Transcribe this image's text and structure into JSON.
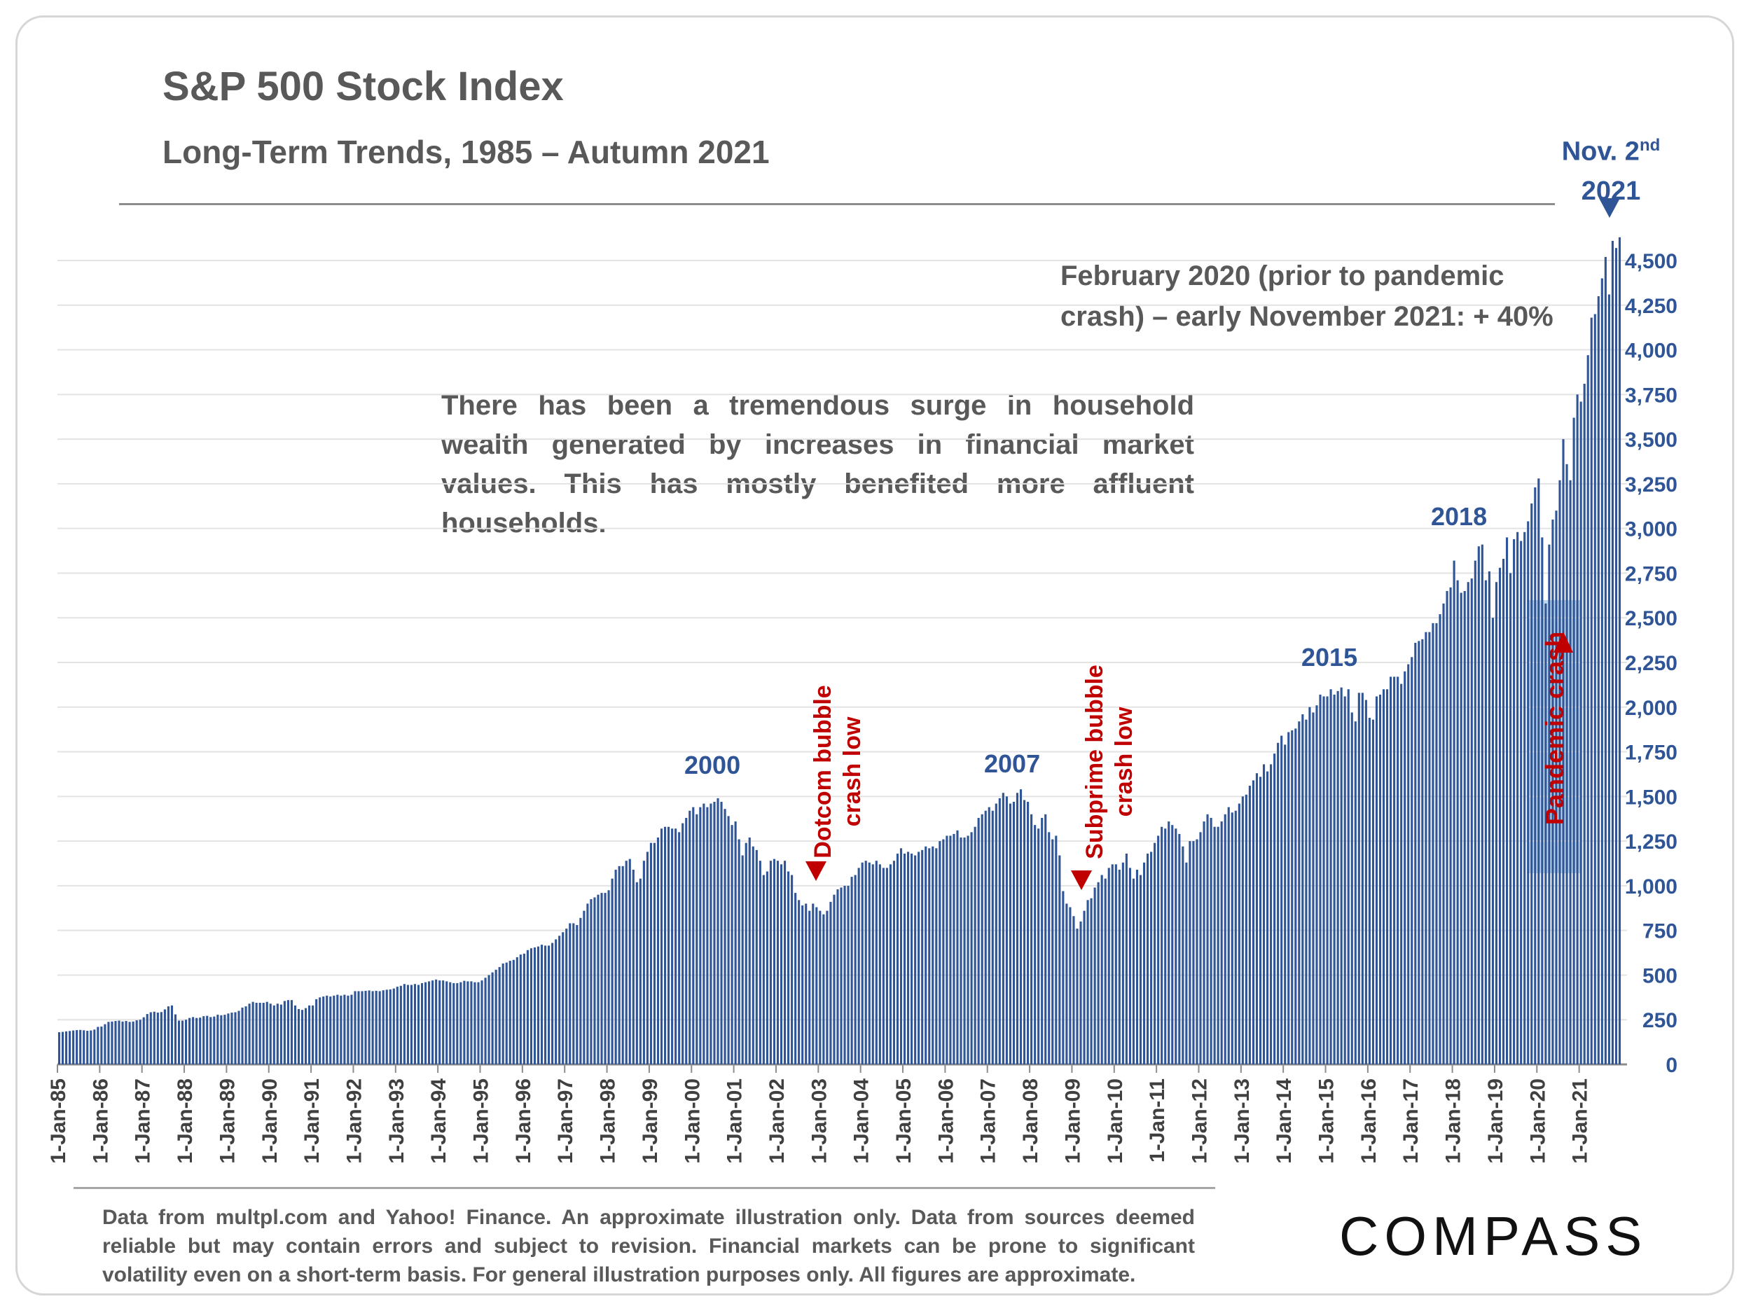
{
  "title": "S&P 500 Stock Index",
  "subtitle": "Long-Term Trends, 1985 – Autumn 2021",
  "nov_label": {
    "line1": "Nov. 2",
    "sup": "nd",
    "line2": "2021"
  },
  "note_feb2020": "February 2020 (prior to pandemic crash) – early November 2021: + 40%",
  "note_wealth": "There has been a tremendous surge in household wealth generated by increases in financial market values. This has mostly benefited more affluent households.",
  "peak_labels": {
    "p2000": "2000",
    "p2007": "2007",
    "p2015": "2015",
    "p2018": "2018"
  },
  "crash_labels": {
    "dotcom_line1": "Dotcom bubble",
    "dotcom_line2": "crash low",
    "subprime_line1": "Subprime bubble",
    "subprime_line2": "crash low",
    "pandemic": "Pandemic crash"
  },
  "footer": "Data from multpl.com and Yahoo! Finance. An approximate illustration only. Data from sources deemed reliable but may contain errors and subject to revision. Financial markets can be prone to significant volatility even on a short-term basis. For general illustration purposes only. All figures are approximate.",
  "logo": "COMPASS",
  "colors": {
    "bar": "#2f5597",
    "annotation": "#c00000",
    "text": "#595959",
    "pandemic_box": "#bdd7ee"
  },
  "chart_data": {
    "type": "bar",
    "frequency": "monthly",
    "title": "S&P 500 Stock Index",
    "ylim": [
      0,
      4500
    ],
    "y_ticks": [
      0,
      250,
      500,
      750,
      1000,
      1250,
      1500,
      1750,
      2000,
      2250,
      2500,
      2750,
      3000,
      3250,
      3500,
      3750,
      4000,
      4250,
      4500
    ],
    "y_tick_labels": [
      "0",
      "250",
      "500",
      "750",
      "1,000",
      "1,250",
      "1,500",
      "1,750",
      "2,000",
      "2,250",
      "2,500",
      "2,750",
      "3,000",
      "3,250",
      "3,500",
      "3,750",
      "4,000",
      "4,250",
      "4,500"
    ],
    "y_axis_side": "right",
    "grid": true,
    "x_tick_labels": [
      "1-Jan-85",
      "1-Jan-86",
      "1-Jan-87",
      "1-Jan-88",
      "1-Jan-89",
      "1-Jan-90",
      "1-Jan-91",
      "1-Jan-92",
      "1-Jan-93",
      "1-Jan-94",
      "1-Jan-95",
      "1-Jan-96",
      "1-Jan-97",
      "1-Jan-98",
      "1-Jan-99",
      "1-Jan-00",
      "1-Jan-01",
      "1-Jan-02",
      "1-Jan-03",
      "1-Jan-04",
      "1-Jan-05",
      "1-Jan-06",
      "1-Jan-07",
      "1-Jan-08",
      "1-Jan-09",
      "1-Jan-10",
      "1-Jan-11",
      "1-Jan-12",
      "1-Jan-13",
      "1-Jan-14",
      "1-Jan-15",
      "1-Jan-16",
      "1-Jan-17",
      "1-Jan-18",
      "1-Jan-19",
      "1-Jan-20",
      "1-Jan-21"
    ],
    "series": [
      {
        "start": "1985-01",
        "values": [
          180,
          182,
          185,
          187,
          190,
          192,
          193,
          191,
          188,
          190,
          195,
          210,
          212,
          225,
          238,
          240,
          243,
          245,
          240,
          243,
          238,
          240,
          247,
          250,
          264,
          282,
          292,
          295,
          290,
          293,
          308,
          325,
          330,
          280,
          245,
          245,
          250,
          260,
          265,
          260,
          262,
          270,
          272,
          265,
          268,
          278,
          275,
          278,
          285,
          290,
          292,
          300,
          318,
          325,
          340,
          350,
          345,
          345,
          345,
          350,
          340,
          330,
          340,
          335,
          355,
          360,
          360,
          330,
          310,
          305,
          315,
          330,
          330,
          365,
          375,
          380,
          385,
          380,
          385,
          390,
          385,
          390,
          385,
          390,
          410,
          410,
          410,
          412,
          414,
          410,
          412,
          410,
          415,
          418,
          420,
          425,
          435,
          440,
          450,
          445,
          445,
          450,
          445,
          455,
          460,
          465,
          470,
          475,
          470,
          470,
          465,
          460,
          455,
          455,
          460,
          468,
          465,
          465,
          460,
          460,
          470,
          485,
          500,
          515,
          530,
          545,
          565,
          570,
          580,
          585,
          600,
          615,
          620,
          640,
          650,
          655,
          660,
          670,
          665,
          665,
          680,
          700,
          720,
          740,
          760,
          790,
          790,
          780,
          820,
          860,
          900,
          925,
          935,
          950,
          960,
          960,
          975,
          1040,
          1090,
          1110,
          1110,
          1140,
          1150,
          1090,
          1020,
          1040,
          1140,
          1190,
          1240,
          1240,
          1270,
          1320,
          1330,
          1330,
          1320,
          1320,
          1300,
          1350,
          1380,
          1420,
          1440,
          1400,
          1440,
          1460,
          1440,
          1460,
          1470,
          1490,
          1470,
          1430,
          1390,
          1340,
          1360,
          1260,
          1170,
          1240,
          1270,
          1220,
          1200,
          1140,
          1060,
          1080,
          1140,
          1150,
          1140,
          1120,
          1140,
          1080,
          1060,
          960,
          920,
          890,
          900,
          860,
          900,
          880,
          860,
          840,
          860,
          910,
          950,
          980,
          990,
          1000,
          1000,
          1050,
          1060,
          1100,
          1130,
          1140,
          1130,
          1120,
          1140,
          1120,
          1100,
          1100,
          1120,
          1140,
          1180,
          1210,
          1180,
          1190,
          1180,
          1170,
          1190,
          1200,
          1220,
          1210,
          1220,
          1210,
          1250,
          1260,
          1280,
          1280,
          1290,
          1310,
          1270,
          1270,
          1280,
          1300,
          1330,
          1380,
          1400,
          1420,
          1440,
          1420,
          1460,
          1490,
          1520,
          1500,
          1460,
          1470,
          1520,
          1540,
          1480,
          1470,
          1400,
          1340,
          1320,
          1380,
          1400,
          1300,
          1260,
          1280,
          1170,
          970,
          900,
          880,
          830,
          760,
          800,
          860,
          920,
          930,
          990,
          1020,
          1060,
          1040,
          1100,
          1120,
          1120,
          1090,
          1130,
          1180,
          1100,
          1040,
          1090,
          1060,
          1130,
          1180,
          1190,
          1240,
          1280,
          1330,
          1320,
          1360,
          1340,
          1320,
          1290,
          1220,
          1130,
          1250,
          1250,
          1260,
          1300,
          1360,
          1400,
          1380,
          1330,
          1330,
          1360,
          1400,
          1440,
          1410,
          1420,
          1460,
          1500,
          1510,
          1560,
          1590,
          1630,
          1610,
          1680,
          1640,
          1680,
          1740,
          1800,
          1840,
          1790,
          1860,
          1870,
          1880,
          1920,
          1960,
          1930,
          2000,
          1970,
          2010,
          2070,
          2060,
          2060,
          2100,
          2070,
          2090,
          2110,
          2060,
          2100,
          1970,
          1920,
          2080,
          2080,
          2040,
          1940,
          1930,
          2060,
          2070,
          2100,
          2100,
          2170,
          2170,
          2170,
          2130,
          2200,
          2240,
          2280,
          2360,
          2370,
          2380,
          2420,
          2420,
          2470,
          2470,
          2520,
          2580,
          2650,
          2670,
          2820,
          2710,
          2640,
          2650,
          2700,
          2720,
          2820,
          2900,
          2910,
          2710,
          2760,
          2500,
          2700,
          2780,
          2830,
          2950,
          2750,
          2940,
          2980,
          2930,
          2980,
          3040,
          3140,
          3230,
          3280,
          2950,
          2580,
          2910,
          3050,
          3100,
          3270,
          3500,
          3360,
          3270,
          3620,
          3750,
          3710,
          3810,
          3970,
          4180,
          4200,
          4300,
          4400,
          4520,
          4310,
          4610,
          4570,
          4630
        ]
      }
    ]
  }
}
